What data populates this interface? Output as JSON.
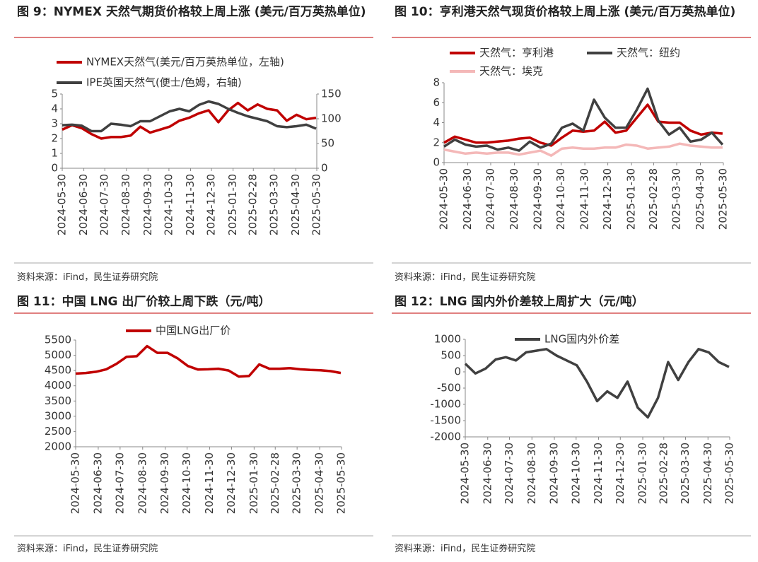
{
  "chart_data": [
    {
      "type": "line",
      "title": "图 9：NYMEX 天然气期货价格较上周上涨 (美元/百万英热单位)",
      "source": "资料来源：iFind，民生证券研究院",
      "x": [
        "2024-05-30",
        "2024-06-13",
        "2024-06-27",
        "2024-07-11",
        "2024-07-25",
        "2024-08-08",
        "2024-08-22",
        "2024-09-05",
        "2024-09-19",
        "2024-10-03",
        "2024-10-17",
        "2024-10-31",
        "2024-11-14",
        "2024-11-28",
        "2024-12-12",
        "2024-12-26",
        "2025-01-09",
        "2025-01-23",
        "2025-02-06",
        "2025-02-20",
        "2025-03-06",
        "2025-03-20",
        "2025-04-03",
        "2025-04-17",
        "2025-05-01",
        "2025-05-15",
        "2025-05-29"
      ],
      "xlim": [
        "2024-05-30",
        "2025-05-30"
      ],
      "xticks": [
        "2024-05-30",
        "2024-06-30",
        "2024-07-30",
        "2024-08-30",
        "2024-09-30",
        "2024-10-30",
        "2024-11-30",
        "2024-12-30",
        "2025-01-30",
        "2025-02-28",
        "2025-03-30",
        "2025-04-30",
        "2025-05-30"
      ],
      "ylim": [
        0,
        5
      ],
      "yticks": [
        0,
        1,
        2,
        3,
        4,
        5
      ],
      "y2lim": [
        0,
        150
      ],
      "y2ticks": [
        0,
        50,
        100,
        150
      ],
      "series": [
        {
          "name": "NYMEX天然气(美元/百万英热单位，左轴)",
          "color": "#c00000",
          "values": [
            2.6,
            2.9,
            2.7,
            2.3,
            2.0,
            2.1,
            2.1,
            2.2,
            2.8,
            2.4,
            2.6,
            2.8,
            3.2,
            3.4,
            3.7,
            3.9,
            3.1,
            3.9,
            4.4,
            3.9,
            4.3,
            4.0,
            3.9,
            3.2,
            3.6,
            3.3,
            3.4
          ]
        },
        {
          "name": "IPE英国天然气(便士/色姆，右轴)",
          "color": "#404040",
          "axis": "y2",
          "values": [
            87,
            88,
            86,
            75,
            75,
            90,
            88,
            85,
            95,
            95,
            105,
            115,
            120,
            115,
            128,
            135,
            130,
            120,
            112,
            105,
            100,
            95,
            85,
            83,
            85,
            88,
            80
          ]
        }
      ]
    },
    {
      "type": "line",
      "title": "图 10：亨利港天然气现货价格较上周上涨 (美元/百万英热单位)",
      "source": "资料来源：iFind，民生证券研究院",
      "x": [
        "2024-05-30",
        "2024-06-13",
        "2024-06-27",
        "2024-07-11",
        "2024-07-25",
        "2024-08-08",
        "2024-08-22",
        "2024-09-05",
        "2024-09-19",
        "2024-10-03",
        "2024-10-17",
        "2024-10-31",
        "2024-11-14",
        "2024-11-28",
        "2024-12-12",
        "2024-12-26",
        "2025-01-09",
        "2025-01-23",
        "2025-02-06",
        "2025-02-20",
        "2025-03-06",
        "2025-03-20",
        "2025-04-03",
        "2025-04-17",
        "2025-05-01",
        "2025-05-15",
        "2025-05-29"
      ],
      "xlim": [
        "2024-05-30",
        "2025-05-30"
      ],
      "xticks": [
        "2024-05-30",
        "2024-06-30",
        "2024-07-30",
        "2024-08-30",
        "2024-09-30",
        "2024-10-30",
        "2024-11-30",
        "2024-12-30",
        "2025-01-30",
        "2025-02-28",
        "2025-03-30",
        "2025-04-30",
        "2025-05-30"
      ],
      "ylim": [
        0,
        8
      ],
      "yticks": [
        0,
        2,
        4,
        6,
        8
      ],
      "series": [
        {
          "name": "天然气：亨利港",
          "color": "#c00000",
          "values": [
            2.0,
            2.6,
            2.3,
            2.0,
            2.0,
            2.1,
            2.2,
            2.4,
            2.5,
            2.0,
            1.7,
            2.5,
            3.2,
            3.1,
            3.2,
            4.1,
            3.0,
            3.2,
            4.5,
            5.8,
            4.1,
            4.0,
            4.0,
            3.2,
            2.8,
            3.0,
            2.9
          ]
        },
        {
          "name": "天然气：纽约",
          "color": "#404040",
          "values": [
            1.6,
            2.3,
            1.8,
            1.6,
            1.7,
            1.3,
            1.5,
            1.2,
            2.1,
            1.5,
            1.9,
            3.5,
            3.9,
            3.2,
            6.3,
            4.5,
            3.5,
            3.5,
            5.3,
            7.4,
            4.2,
            2.8,
            3.5,
            2.1,
            2.3,
            3.0,
            1.8
          ]
        },
        {
          "name": "天然气：埃克",
          "color": "#f4b8b8",
          "values": [
            1.3,
            1.1,
            0.9,
            1.0,
            0.9,
            1.0,
            1.0,
            0.8,
            1.0,
            1.2,
            0.7,
            1.4,
            1.5,
            1.4,
            1.4,
            1.5,
            1.5,
            1.8,
            1.7,
            1.4,
            1.5,
            1.6,
            1.9,
            1.7,
            1.6,
            1.5,
            1.5
          ]
        }
      ]
    },
    {
      "type": "line",
      "title": "图 11：中国 LNG 出厂价较上周下跌（元/吨）",
      "source": "资料来源：iFind，民生证券研究院",
      "x": [
        "2024-05-30",
        "2024-06-13",
        "2024-06-27",
        "2024-07-11",
        "2024-07-25",
        "2024-08-08",
        "2024-08-22",
        "2024-09-05",
        "2024-09-19",
        "2024-10-03",
        "2024-10-17",
        "2024-10-31",
        "2024-11-14",
        "2024-11-28",
        "2024-12-12",
        "2024-12-26",
        "2025-01-09",
        "2025-01-23",
        "2025-02-06",
        "2025-02-20",
        "2025-03-06",
        "2025-03-20",
        "2025-04-03",
        "2025-04-17",
        "2025-05-01",
        "2025-05-15",
        "2025-05-29"
      ],
      "xlim": [
        "2024-05-30",
        "2025-05-30"
      ],
      "xticks": [
        "2024-05-30",
        "2024-06-30",
        "2024-07-30",
        "2024-08-30",
        "2024-09-30",
        "2024-10-30",
        "2024-11-30",
        "2024-12-30",
        "2025-01-30",
        "2025-02-28",
        "2025-03-30",
        "2025-04-30",
        "2025-05-30"
      ],
      "ylim": [
        2000,
        5500
      ],
      "yticks": [
        2000,
        2500,
        3000,
        3500,
        4000,
        4500,
        5000,
        5500
      ],
      "series": [
        {
          "name": "中国LNG出厂价",
          "color": "#c00000",
          "values": [
            4400,
            4420,
            4460,
            4540,
            4720,
            4950,
            4970,
            5300,
            5080,
            5080,
            4900,
            4650,
            4530,
            4540,
            4560,
            4500,
            4300,
            4320,
            4700,
            4560,
            4560,
            4580,
            4540,
            4520,
            4510,
            4480,
            4420
          ]
        }
      ]
    },
    {
      "type": "line",
      "title": "图 12：LNG 国内外价差较上周扩大（元/吨）",
      "source": "资料来源：iFind，民生证券研究院",
      "x": [
        "2024-05-30",
        "2024-06-13",
        "2024-06-27",
        "2024-07-11",
        "2024-07-25",
        "2024-08-08",
        "2024-08-22",
        "2024-09-05",
        "2024-09-19",
        "2024-10-03",
        "2024-10-17",
        "2024-10-31",
        "2024-11-14",
        "2024-11-28",
        "2024-12-12",
        "2024-12-26",
        "2025-01-09",
        "2025-01-23",
        "2025-02-06",
        "2025-02-20",
        "2025-03-06",
        "2025-03-20",
        "2025-04-03",
        "2025-04-17",
        "2025-05-01",
        "2025-05-15",
        "2025-05-29"
      ],
      "xlim": [
        "2024-05-30",
        "2025-05-30"
      ],
      "xticks": [
        "2024-05-30",
        "2024-06-30",
        "2024-07-30",
        "2024-08-30",
        "2024-09-30",
        "2024-10-30",
        "2024-11-30",
        "2024-12-30",
        "2025-01-30",
        "2025-02-28",
        "2025-03-30",
        "2025-04-30",
        "2025-05-30"
      ],
      "ylim": [
        -2000,
        1000
      ],
      "yticks": [
        -2000,
        -1500,
        -1000,
        -500,
        0,
        500,
        1000
      ],
      "negative_tick_color": "#e00000",
      "series": [
        {
          "name": "LNG国内外价差",
          "color": "#404040",
          "values": [
            250,
            -50,
            100,
            380,
            450,
            350,
            600,
            650,
            700,
            500,
            350,
            200,
            -300,
            -900,
            -600,
            -800,
            -300,
            -1100,
            -1400,
            -800,
            300,
            -250,
            300,
            700,
            600,
            300,
            150
          ]
        }
      ]
    }
  ]
}
